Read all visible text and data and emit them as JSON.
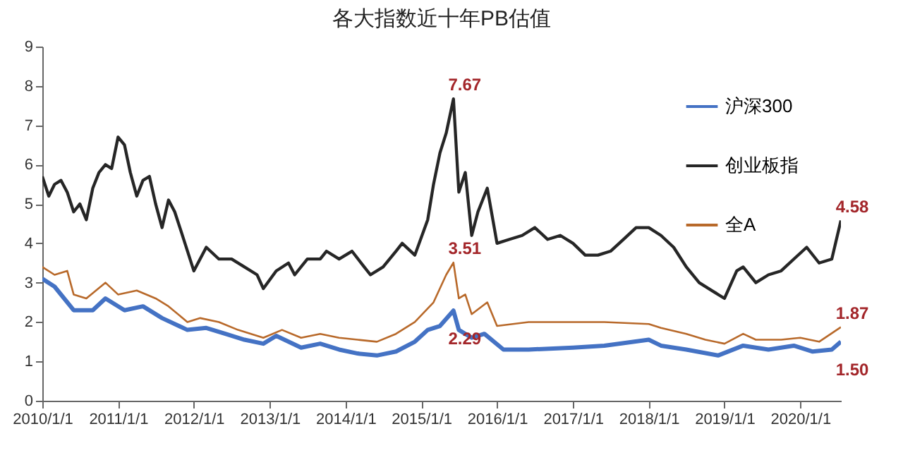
{
  "chart_data": {
    "type": "line",
    "title": "各大指数近十年PB估值",
    "xlim": [
      "2010-01-01",
      "2020-07-15"
    ],
    "xticks": [
      {
        "value": "2010-01-01",
        "label": "2010/1/1"
      },
      {
        "value": "2011-01-01",
        "label": "2011/1/1"
      },
      {
        "value": "2012-01-01",
        "label": "2012/1/1"
      },
      {
        "value": "2013-01-01",
        "label": "2013/1/1"
      },
      {
        "value": "2014-01-01",
        "label": "2014/1/1"
      },
      {
        "value": "2015-01-01",
        "label": "2015/1/1"
      },
      {
        "value": "2016-01-01",
        "label": "2016/1/1"
      },
      {
        "value": "2017-01-01",
        "label": "2017/1/1"
      },
      {
        "value": "2018-01-01",
        "label": "2018/1/1"
      },
      {
        "value": "2019-01-01",
        "label": "2019/1/1"
      },
      {
        "value": "2020-01-01",
        "label": "2020/1/1"
      }
    ],
    "ylim": [
      0,
      9
    ],
    "yticks": [
      0,
      1,
      2,
      3,
      4,
      5,
      6,
      7,
      8,
      9
    ],
    "grid": false,
    "legend": "top right",
    "series": [
      {
        "name": "沪深300",
        "color": "#4472c4",
        "x": [
          "2010-01-01",
          "2010-03-01",
          "2010-06-01",
          "2010-09-01",
          "2010-11-01",
          "2011-02-01",
          "2011-05-01",
          "2011-08-01",
          "2011-12-01",
          "2012-03-01",
          "2012-06-01",
          "2012-09-01",
          "2012-12-01",
          "2013-02-01",
          "2013-06-01",
          "2013-09-01",
          "2013-12-01",
          "2014-03-01",
          "2014-06-01",
          "2014-09-01",
          "2014-12-01",
          "2015-02-01",
          "2015-04-01",
          "2015-06-05",
          "2015-07-01",
          "2015-09-01",
          "2015-11-01",
          "2016-02-01",
          "2016-06-01",
          "2017-01-01",
          "2017-06-01",
          "2018-01-01",
          "2018-03-01",
          "2018-07-01",
          "2018-12-01",
          "2019-04-01",
          "2019-08-01",
          "2019-12-01",
          "2020-03-01",
          "2020-06-01",
          "2020-07-15"
        ],
        "values": [
          3.1,
          2.9,
          2.3,
          2.3,
          2.6,
          2.3,
          2.4,
          2.1,
          1.8,
          1.85,
          1.7,
          1.55,
          1.45,
          1.65,
          1.35,
          1.45,
          1.3,
          1.2,
          1.15,
          1.25,
          1.5,
          1.8,
          1.9,
          2.29,
          1.8,
          1.6,
          1.7,
          1.3,
          1.3,
          1.35,
          1.4,
          1.55,
          1.4,
          1.3,
          1.15,
          1.4,
          1.3,
          1.4,
          1.25,
          1.3,
          1.5
        ]
      },
      {
        "name": "创业板指",
        "color": "#262626",
        "x": [
          "2010-01-01",
          "2010-02-01",
          "2010-03-01",
          "2010-04-01",
          "2010-05-01",
          "2010-06-01",
          "2010-07-01",
          "2010-08-01",
          "2010-09-01",
          "2010-10-01",
          "2010-11-01",
          "2010-12-01",
          "2011-01-01",
          "2011-02-01",
          "2011-03-01",
          "2011-04-01",
          "2011-05-01",
          "2011-06-01",
          "2011-07-01",
          "2011-08-01",
          "2011-09-01",
          "2011-10-01",
          "2011-11-01",
          "2012-01-01",
          "2012-03-01",
          "2012-05-01",
          "2012-07-01",
          "2012-09-01",
          "2012-11-01",
          "2012-12-01",
          "2013-02-01",
          "2013-04-01",
          "2013-05-01",
          "2013-07-01",
          "2013-09-01",
          "2013-10-01",
          "2013-12-01",
          "2014-02-01",
          "2014-04-01",
          "2014-05-01",
          "2014-07-01",
          "2014-09-01",
          "2014-10-01",
          "2014-12-01",
          "2015-02-01",
          "2015-03-01",
          "2015-04-01",
          "2015-05-01",
          "2015-06-05",
          "2015-07-01",
          "2015-08-01",
          "2015-09-01",
          "2015-10-01",
          "2015-11-15",
          "2016-01-01",
          "2016-03-01",
          "2016-05-01",
          "2016-07-01",
          "2016-09-01",
          "2016-11-01",
          "2017-01-01",
          "2017-03-01",
          "2017-05-01",
          "2017-07-01",
          "2017-09-01",
          "2017-11-01",
          "2018-01-01",
          "2018-03-01",
          "2018-05-01",
          "2018-07-01",
          "2018-09-01",
          "2018-11-01",
          "2019-01-01",
          "2019-03-01",
          "2019-04-01",
          "2019-06-01",
          "2019-08-01",
          "2019-10-01",
          "2019-12-01",
          "2020-02-01",
          "2020-04-01",
          "2020-06-01",
          "2020-07-15"
        ],
        "values": [
          5.7,
          5.2,
          5.5,
          5.6,
          5.3,
          4.8,
          5.0,
          4.6,
          5.4,
          5.8,
          6.0,
          5.9,
          6.7,
          6.5,
          5.8,
          5.2,
          5.6,
          5.7,
          5.0,
          4.4,
          5.1,
          4.8,
          4.3,
          3.3,
          3.9,
          3.6,
          3.6,
          3.4,
          3.2,
          2.85,
          3.3,
          3.5,
          3.2,
          3.6,
          3.6,
          3.8,
          3.6,
          3.8,
          3.4,
          3.2,
          3.4,
          3.8,
          4.0,
          3.7,
          4.6,
          5.5,
          6.3,
          6.8,
          7.67,
          5.3,
          5.8,
          4.2,
          4.8,
          5.4,
          4.0,
          4.1,
          4.2,
          4.4,
          4.1,
          4.2,
          4.0,
          3.7,
          3.7,
          3.8,
          4.1,
          4.4,
          4.4,
          4.2,
          3.9,
          3.4,
          3.0,
          2.8,
          2.6,
          3.3,
          3.4,
          3.0,
          3.2,
          3.3,
          3.6,
          3.9,
          3.5,
          3.6,
          4.58
        ]
      },
      {
        "name": "全A",
        "color": "#b8692a",
        "x": [
          "2010-01-01",
          "2010-03-01",
          "2010-05-01",
          "2010-06-01",
          "2010-08-01",
          "2010-11-01",
          "2011-01-01",
          "2011-04-01",
          "2011-07-01",
          "2011-09-01",
          "2011-12-01",
          "2012-02-01",
          "2012-05-01",
          "2012-08-01",
          "2012-12-01",
          "2013-03-01",
          "2013-06-01",
          "2013-09-01",
          "2013-12-01",
          "2014-03-01",
          "2014-06-01",
          "2014-09-01",
          "2014-12-01",
          "2015-03-01",
          "2015-05-01",
          "2015-06-05",
          "2015-07-01",
          "2015-08-01",
          "2015-09-01",
          "2015-11-15",
          "2016-01-01",
          "2016-06-01",
          "2017-01-01",
          "2017-06-01",
          "2018-01-01",
          "2018-03-01",
          "2018-07-01",
          "2018-10-01",
          "2019-01-01",
          "2019-04-01",
          "2019-06-01",
          "2019-10-01",
          "2020-01-01",
          "2020-04-01",
          "2020-07-15"
        ],
        "values": [
          3.4,
          3.2,
          3.3,
          2.7,
          2.6,
          3.0,
          2.7,
          2.8,
          2.6,
          2.4,
          2.0,
          2.1,
          2.0,
          1.8,
          1.6,
          1.8,
          1.6,
          1.7,
          1.6,
          1.55,
          1.5,
          1.7,
          2.0,
          2.5,
          3.2,
          3.51,
          2.6,
          2.7,
          2.2,
          2.5,
          1.9,
          2.0,
          2.0,
          2.0,
          1.95,
          1.85,
          1.7,
          1.55,
          1.45,
          1.7,
          1.55,
          1.55,
          1.6,
          1.5,
          1.87
        ]
      }
    ],
    "annotations": [
      {
        "text": "7.67",
        "x": "2015-06-05",
        "y": 7.67
      },
      {
        "text": "3.51",
        "x": "2015-06-05",
        "y": 3.51
      },
      {
        "text": "2.29",
        "x": "2015-06-05",
        "y": 2.29
      },
      {
        "text": "4.58",
        "x": "2020-07-15",
        "y": 4.58
      },
      {
        "text": "1.87",
        "x": "2020-07-15",
        "y": 1.87
      },
      {
        "text": "1.50",
        "x": "2020-07-15",
        "y": 1.5
      }
    ]
  }
}
